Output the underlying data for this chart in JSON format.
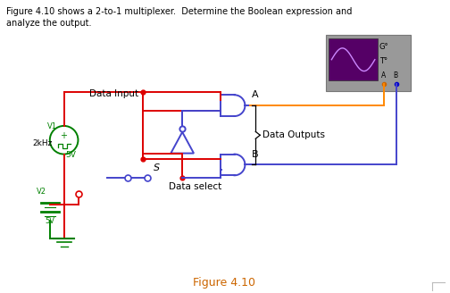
{
  "title_line1": "Figure 4.10 shows a 2-to-1 multiplexer.  Determine the Boolean expression and",
  "title_line2": "analyze the output.",
  "figure_caption": "Figure 4.10",
  "bg_color": "#ffffff",
  "text_color": "#000000",
  "red_wire": "#dd0000",
  "blue_wire": "#4444cc",
  "orange_wire": "#ff8800",
  "green_color": "#008000",
  "scope_bg": "#550066",
  "scope_gray": "#999999",
  "scope_wave": "#cc88ff",
  "lw": 1.4
}
